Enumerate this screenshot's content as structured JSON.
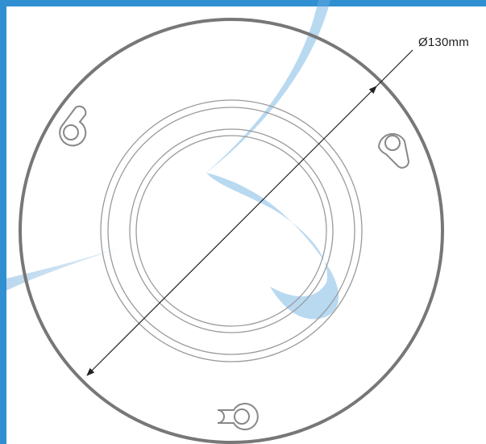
{
  "diagram": {
    "dimension_label": "Ø130mm"
  },
  "colors": {
    "frame": "#2f8fd0",
    "outline": "#777777",
    "ring": "#9a9a9a",
    "dimension_line": "#222222",
    "watermark": "#5b9fd6"
  }
}
